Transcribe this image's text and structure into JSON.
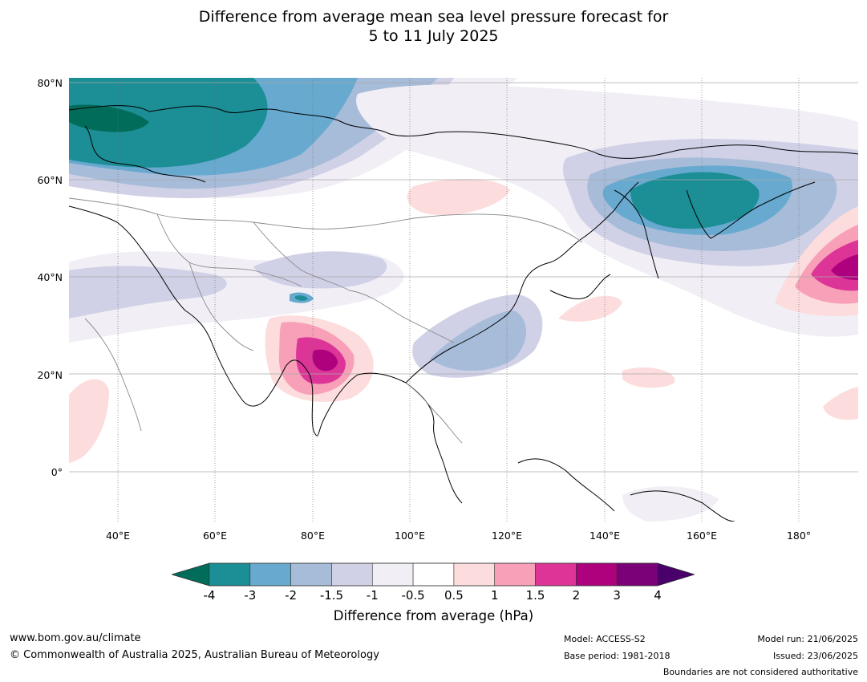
{
  "title_line1": "Difference from average mean sea level pressure forecast for",
  "title_line2": "5 to 11 July 2025",
  "lat_labels": [
    "80°N",
    "60°N",
    "40°N",
    "20°N",
    "0°"
  ],
  "lon_labels": [
    "40°E",
    "60°E",
    "80°E",
    "100°E",
    "120°E",
    "140°E",
    "160°E",
    "180°"
  ],
  "colorbar": {
    "ticks": [
      "-4",
      "-3",
      "-2",
      "-1.5",
      "-1",
      "-0.5",
      "0.5",
      "1",
      "1.5",
      "2",
      "3",
      "4"
    ],
    "colors": [
      "#1b8e96",
      "#67a9cf",
      "#a6bcd9",
      "#d0d1e6",
      "#f1eef6",
      "#ffffff",
      "#fcdcdc",
      "#f7a0b8",
      "#dd3497",
      "#ae017e",
      "#7a0177"
    ],
    "under_color": "#016c59",
    "over_color": "#49006a",
    "label": "Difference from average (hPa)"
  },
  "footer": {
    "website": "www.bom.gov.au/climate",
    "copyright": "© Commonwealth of Australia 2025, Australian Bureau of Meteorology",
    "model": "Model: ACCESS-S2",
    "base_period": "Base period: 1981-2018",
    "model_run": "Model run: 21/06/2025",
    "issued": "Issued: 23/06/2025",
    "disclaimer": "Boundaries are not considered authoritative"
  }
}
